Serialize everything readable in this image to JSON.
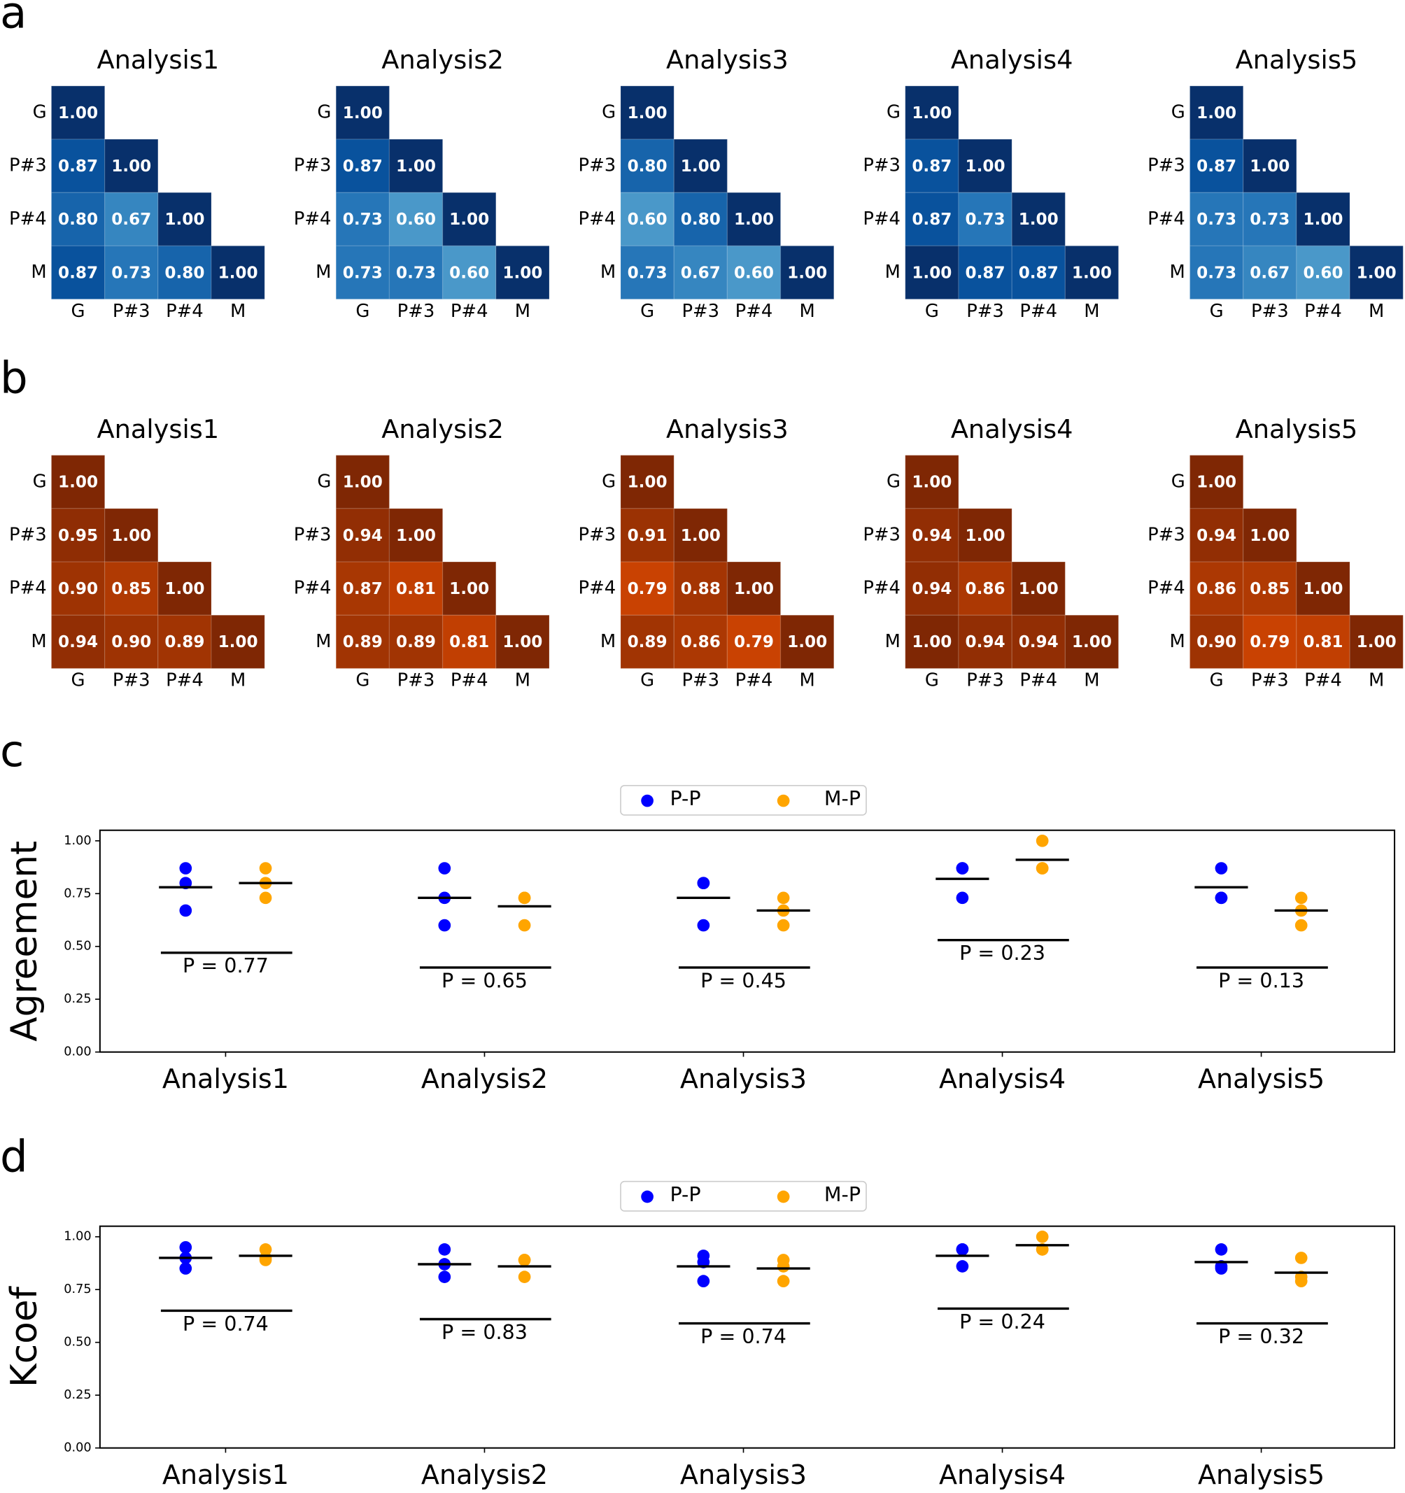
{
  "panels": [
    "a",
    "b",
    "c",
    "d"
  ],
  "chart_data": [
    {
      "type": "heatmap",
      "title": "Analysis1",
      "colormap": "Blues",
      "rows": [
        "G",
        "P#3",
        "P#4",
        "M"
      ],
      "columns": [
        "G",
        "P#3",
        "P#4",
        "M"
      ],
      "values": [
        [
          1.0,
          null,
          null,
          null
        ],
        [
          0.87,
          1.0,
          null,
          null
        ],
        [
          0.8,
          0.67,
          1.0,
          null
        ],
        [
          0.87,
          0.73,
          0.8,
          1.0
        ]
      ],
      "value_labels": [
        [
          "1.00",
          null,
          null,
          null
        ],
        [
          "0.87",
          "1.00",
          null,
          null
        ],
        [
          "0.80",
          "0.67",
          "1.00",
          null
        ],
        [
          "0.87",
          "0.73",
          "0.80",
          "1.00"
        ]
      ]
    },
    {
      "type": "heatmap",
      "title": "Analysis2",
      "colormap": "Blues",
      "rows": [
        "G",
        "P#3",
        "P#4",
        "M"
      ],
      "columns": [
        "G",
        "P#3",
        "P#4",
        "M"
      ],
      "values": [
        [
          1.0,
          null,
          null,
          null
        ],
        [
          0.87,
          1.0,
          null,
          null
        ],
        [
          0.73,
          0.6,
          1.0,
          null
        ],
        [
          0.73,
          0.73,
          0.6,
          1.0
        ]
      ],
      "value_labels": [
        [
          "1.00",
          null,
          null,
          null
        ],
        [
          "0.87",
          "1.00",
          null,
          null
        ],
        [
          "0.73",
          "0.60",
          "1.00",
          null
        ],
        [
          "0.73",
          "0.73",
          "0.60",
          "1.00"
        ]
      ]
    },
    {
      "type": "heatmap",
      "title": "Analysis3",
      "colormap": "Blues",
      "rows": [
        "G",
        "P#3",
        "P#4",
        "M"
      ],
      "columns": [
        "G",
        "P#3",
        "P#4",
        "M"
      ],
      "values": [
        [
          1.0,
          null,
          null,
          null
        ],
        [
          0.8,
          1.0,
          null,
          null
        ],
        [
          0.6,
          0.8,
          1.0,
          null
        ],
        [
          0.73,
          0.67,
          0.6,
          1.0
        ]
      ],
      "value_labels": [
        [
          "1.00",
          null,
          null,
          null
        ],
        [
          "0.80",
          "1.00",
          null,
          null
        ],
        [
          "0.60",
          "0.80",
          "1.00",
          null
        ],
        [
          "0.73",
          "0.67",
          "0.60",
          "1.00"
        ]
      ]
    },
    {
      "type": "heatmap",
      "title": "Analysis4",
      "colormap": "Blues",
      "rows": [
        "G",
        "P#3",
        "P#4",
        "M"
      ],
      "columns": [
        "G",
        "P#3",
        "P#4",
        "M"
      ],
      "values": [
        [
          1.0,
          null,
          null,
          null
        ],
        [
          0.87,
          1.0,
          null,
          null
        ],
        [
          0.87,
          0.73,
          1.0,
          null
        ],
        [
          1.0,
          0.87,
          0.87,
          1.0
        ]
      ],
      "value_labels": [
        [
          "1.00",
          null,
          null,
          null
        ],
        [
          "0.87",
          "1.00",
          null,
          null
        ],
        [
          "0.87",
          "0.73",
          "1.00",
          null
        ],
        [
          "1.00",
          "0.87",
          "0.87",
          "1.00"
        ]
      ]
    },
    {
      "type": "heatmap",
      "title": "Analysis5",
      "colormap": "Blues",
      "rows": [
        "G",
        "P#3",
        "P#4",
        "M"
      ],
      "columns": [
        "G",
        "P#3",
        "P#4",
        "M"
      ],
      "values": [
        [
          1.0,
          null,
          null,
          null
        ],
        [
          0.87,
          1.0,
          null,
          null
        ],
        [
          0.73,
          0.73,
          1.0,
          null
        ],
        [
          0.73,
          0.67,
          0.6,
          1.0
        ]
      ],
      "value_labels": [
        [
          "1.00",
          null,
          null,
          null
        ],
        [
          "0.87",
          "1.00",
          null,
          null
        ],
        [
          "0.73",
          "0.73",
          "1.00",
          null
        ],
        [
          "0.73",
          "0.67",
          "0.60",
          "1.00"
        ]
      ]
    },
    {
      "type": "heatmap",
      "title": "Analysis1",
      "colormap": "Oranges",
      "rows": [
        "G",
        "P#3",
        "P#4",
        "M"
      ],
      "columns": [
        "G",
        "P#3",
        "P#4",
        "M"
      ],
      "values": [
        [
          1.0,
          null,
          null,
          null
        ],
        [
          0.95,
          1.0,
          null,
          null
        ],
        [
          0.9,
          0.85,
          1.0,
          null
        ],
        [
          0.94,
          0.9,
          0.89,
          1.0
        ]
      ],
      "value_labels": [
        [
          "1.00",
          null,
          null,
          null
        ],
        [
          "0.95",
          "1.00",
          null,
          null
        ],
        [
          "0.90",
          "0.85",
          "1.00",
          null
        ],
        [
          "0.94",
          "0.90",
          "0.89",
          "1.00"
        ]
      ]
    },
    {
      "type": "heatmap",
      "title": "Analysis2",
      "colormap": "Oranges",
      "rows": [
        "G",
        "P#3",
        "P#4",
        "M"
      ],
      "columns": [
        "G",
        "P#3",
        "P#4",
        "M"
      ],
      "values": [
        [
          1.0,
          null,
          null,
          null
        ],
        [
          0.94,
          1.0,
          null,
          null
        ],
        [
          0.87,
          0.81,
          1.0,
          null
        ],
        [
          0.89,
          0.89,
          0.81,
          1.0
        ]
      ],
      "value_labels": [
        [
          "1.00",
          null,
          null,
          null
        ],
        [
          "0.94",
          "1.00",
          null,
          null
        ],
        [
          "0.87",
          "0.81",
          "1.00",
          null
        ],
        [
          "0.89",
          "0.89",
          "0.81",
          "1.00"
        ]
      ]
    },
    {
      "type": "heatmap",
      "title": "Analysis3",
      "colormap": "Oranges",
      "rows": [
        "G",
        "P#3",
        "P#4",
        "M"
      ],
      "columns": [
        "G",
        "P#3",
        "P#4",
        "M"
      ],
      "values": [
        [
          1.0,
          null,
          null,
          null
        ],
        [
          0.91,
          1.0,
          null,
          null
        ],
        [
          0.79,
          0.88,
          1.0,
          null
        ],
        [
          0.89,
          0.86,
          0.79,
          1.0
        ]
      ],
      "value_labels": [
        [
          "1.00",
          null,
          null,
          null
        ],
        [
          "0.91",
          "1.00",
          null,
          null
        ],
        [
          "0.79",
          "0.88",
          "1.00",
          null
        ],
        [
          "0.89",
          "0.86",
          "0.79",
          "1.00"
        ]
      ]
    },
    {
      "type": "heatmap",
      "title": "Analysis4",
      "colormap": "Oranges",
      "rows": [
        "G",
        "P#3",
        "P#4",
        "M"
      ],
      "columns": [
        "G",
        "P#3",
        "P#4",
        "M"
      ],
      "values": [
        [
          1.0,
          null,
          null,
          null
        ],
        [
          0.94,
          1.0,
          null,
          null
        ],
        [
          0.94,
          0.86,
          1.0,
          null
        ],
        [
          1.0,
          0.94,
          0.94,
          1.0
        ]
      ],
      "value_labels": [
        [
          "1.00",
          null,
          null,
          null
        ],
        [
          "0.94",
          "1.00",
          null,
          null
        ],
        [
          "0.94",
          "0.86",
          "1.00",
          null
        ],
        [
          "1.00",
          "0.94",
          "0.94",
          "1.00"
        ]
      ]
    },
    {
      "type": "heatmap",
      "title": "Analysis5",
      "colormap": "Oranges",
      "rows": [
        "G",
        "P#3",
        "P#4",
        "M"
      ],
      "columns": [
        "G",
        "P#3",
        "P#4",
        "M"
      ],
      "values": [
        [
          1.0,
          null,
          null,
          null
        ],
        [
          0.94,
          1.0,
          null,
          null
        ],
        [
          0.86,
          0.85,
          1.0,
          null
        ],
        [
          0.9,
          0.79,
          0.81,
          1.0
        ]
      ],
      "value_labels": [
        [
          "1.00",
          null,
          null,
          null
        ],
        [
          "0.94",
          "1.00",
          null,
          null
        ],
        [
          "0.86",
          "0.85",
          "1.00",
          null
        ],
        [
          "0.90",
          "0.79",
          "0.81",
          "1.00"
        ]
      ]
    },
    {
      "type": "strip",
      "ylabel": "Agreement",
      "categories": [
        "Analysis1",
        "Analysis2",
        "Analysis3",
        "Analysis4",
        "Analysis5"
      ],
      "series": [
        {
          "name": "P-P",
          "color": "#0000ff",
          "values": [
            [
              0.87,
              0.8,
              0.67
            ],
            [
              0.87,
              0.73,
              0.6
            ],
            [
              0.8,
              0.6,
              0.8
            ],
            [
              0.87,
              0.87,
              0.73
            ],
            [
              0.87,
              0.73,
              0.73
            ]
          ],
          "means": [
            0.78,
            0.73,
            0.73,
            0.82,
            0.78
          ]
        },
        {
          "name": "M-P",
          "color": "#ffa500",
          "values": [
            [
              0.87,
              0.73,
              0.8
            ],
            [
              0.73,
              0.73,
              0.6
            ],
            [
              0.73,
              0.67,
              0.6
            ],
            [
              1.0,
              0.87,
              0.87
            ],
            [
              0.73,
              0.67,
              0.6
            ]
          ],
          "means": [
            0.8,
            0.69,
            0.67,
            0.91,
            0.67
          ]
        }
      ],
      "p_labels": [
        "P = 0.77",
        "P = 0.65",
        "P = 0.45",
        "P = 0.23",
        "P = 0.13"
      ],
      "ylim": [
        0,
        1.05
      ],
      "yticks": [
        {
          "value": 0,
          "label": "0.00"
        },
        {
          "value": 0.25,
          "label": "0.25"
        },
        {
          "value": 0.5,
          "label": "0.50"
        },
        {
          "value": 0.75,
          "label": "0.75"
        },
        {
          "value": 1,
          "label": "1.00"
        }
      ],
      "legend": "upper center"
    },
    {
      "type": "strip",
      "ylabel": "Kcoef",
      "categories": [
        "Analysis1",
        "Analysis2",
        "Analysis3",
        "Analysis4",
        "Analysis5"
      ],
      "series": [
        {
          "name": "P-P",
          "color": "#0000ff",
          "values": [
            [
              0.95,
              0.9,
              0.85
            ],
            [
              0.94,
              0.87,
              0.81
            ],
            [
              0.91,
              0.79,
              0.88
            ],
            [
              0.94,
              0.94,
              0.86
            ],
            [
              0.94,
              0.86,
              0.85
            ]
          ],
          "means": [
            0.9,
            0.87,
            0.86,
            0.91,
            0.88
          ]
        },
        {
          "name": "M-P",
          "color": "#ffa500",
          "values": [
            [
              0.94,
              0.9,
              0.89
            ],
            [
              0.89,
              0.89,
              0.81
            ],
            [
              0.89,
              0.86,
              0.79
            ],
            [
              1.0,
              0.94,
              0.94
            ],
            [
              0.9,
              0.79,
              0.81
            ]
          ],
          "means": [
            0.91,
            0.86,
            0.85,
            0.96,
            0.83
          ]
        }
      ],
      "p_labels": [
        "P = 0.74",
        "P = 0.83",
        "P = 0.74",
        "P = 0.24",
        "P = 0.32"
      ],
      "ylim": [
        0,
        1.05
      ],
      "yticks": [
        {
          "value": 0,
          "label": "0.00"
        },
        {
          "value": 0.25,
          "label": "0.25"
        },
        {
          "value": 0.5,
          "label": "0.50"
        },
        {
          "value": 0.75,
          "label": "0.75"
        },
        {
          "value": 1,
          "label": "1.00"
        }
      ],
      "legend": "upper center"
    }
  ]
}
